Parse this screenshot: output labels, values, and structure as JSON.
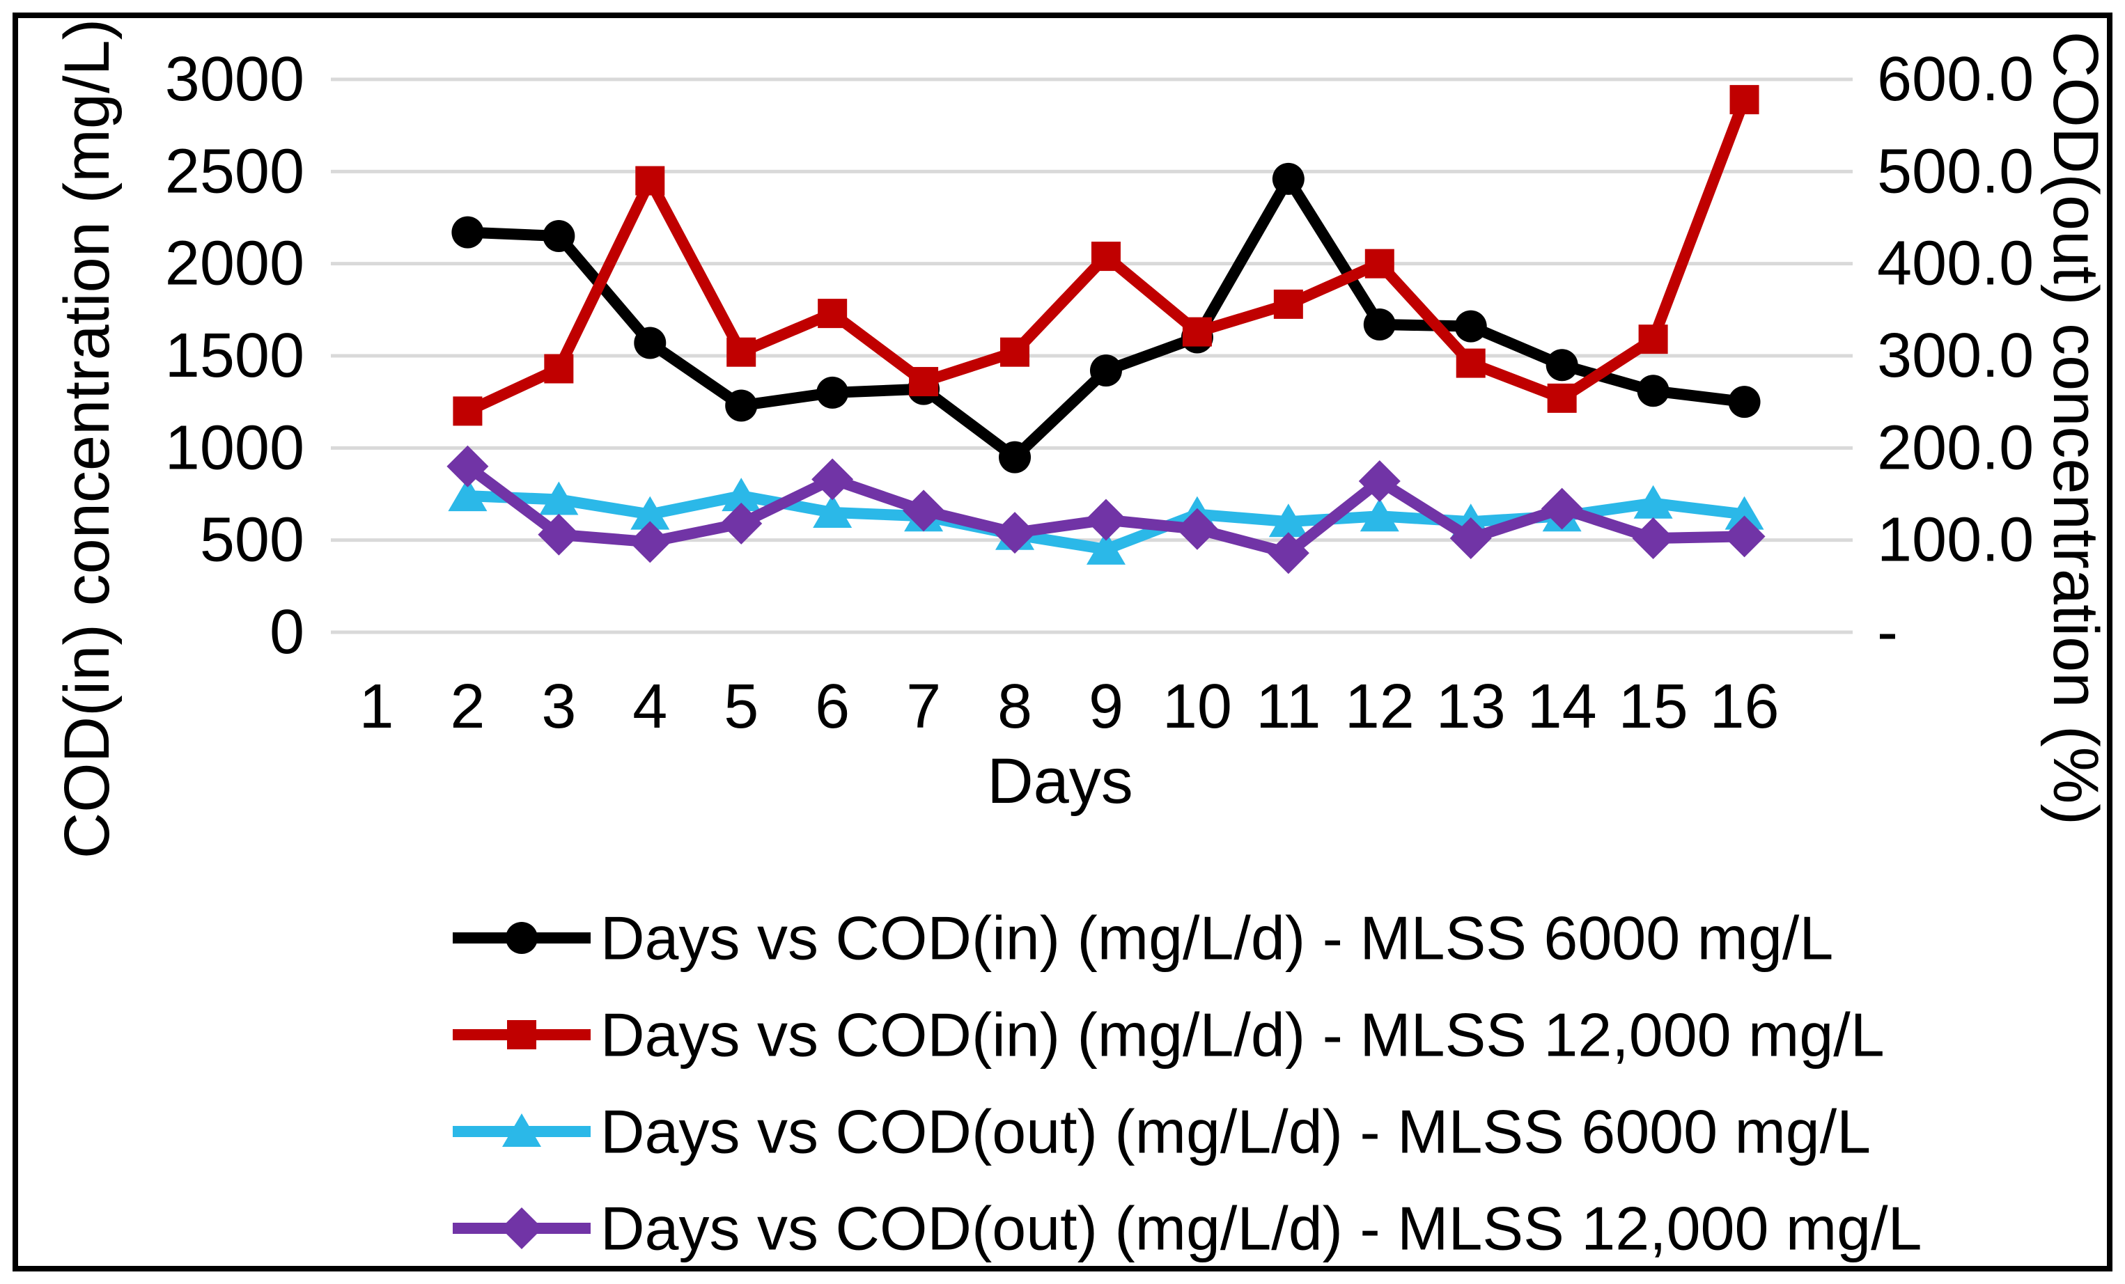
{
  "figure": {
    "background": "#ffffff",
    "border_color": "#000000",
    "gridline_color": "#D9D9D9"
  },
  "chart_data": {
    "type": "line",
    "title": "",
    "grid": true,
    "legend_position": "bottom",
    "x_axis": {
      "title": "Days",
      "tick_labels": [
        "1",
        "2",
        "3",
        "4",
        "5",
        "6",
        "7",
        "8",
        "9",
        "10",
        "11",
        "12",
        "13",
        "14",
        "15",
        "16"
      ]
    },
    "left_axis": {
      "title": "COD(in) concentration (mg/L)",
      "min": 0,
      "max": 3000,
      "tick_labels": [
        "3000",
        "2500",
        "2000",
        "1500",
        "1000",
        "500",
        "0"
      ],
      "tick_values": [
        3000,
        2500,
        2000,
        1500,
        1000,
        500,
        0
      ]
    },
    "right_axis": {
      "title": "COD(out) concentration (%)",
      "min": 0,
      "max": 600,
      "tick_labels": [
        "600.0",
        "500.0",
        "400.0",
        "300.0",
        "200.0",
        "100.0",
        "-"
      ],
      "tick_values": [
        600,
        500,
        400,
        300,
        200,
        100,
        0
      ]
    },
    "series": [
      {
        "name": "Days vs COD(in) (mg/L/d) - MLSS 6000 mg/L",
        "color": "#000000",
        "marker": "circle",
        "axis": "left",
        "x": [
          2,
          3,
          4,
          5,
          6,
          7,
          8,
          9,
          10,
          11,
          12,
          13,
          14,
          15,
          16
        ],
        "values": [
          2170,
          2150,
          1570,
          1230,
          1300,
          1320,
          950,
          1420,
          1600,
          2460,
          1670,
          1660,
          1450,
          1310,
          1250
        ]
      },
      {
        "name": "Days vs COD(in) (mg/L/d) - MLSS 12,000 mg/L",
        "color": "#C00000",
        "marker": "square",
        "axis": "left",
        "x": [
          2,
          3,
          4,
          5,
          6,
          7,
          8,
          9,
          10,
          11,
          12,
          13,
          14,
          15,
          16
        ],
        "values": [
          1200,
          1430,
          2450,
          1520,
          1730,
          1360,
          1520,
          2040,
          1630,
          1780,
          2000,
          1460,
          1270,
          1590,
          2890
        ]
      },
      {
        "name": "Days vs COD(out) (mg/L/d) - MLSS 6000 mg/L",
        "color": "#2BB8E8",
        "marker": "triangle",
        "axis": "right",
        "x": [
          2,
          3,
          4,
          5,
          6,
          7,
          8,
          9,
          10,
          11,
          12,
          13,
          14,
          15,
          16
        ],
        "values": [
          148,
          144,
          128,
          148,
          130,
          126,
          106,
          90,
          128,
          120,
          126,
          120,
          126,
          140,
          128
        ]
      },
      {
        "name": "Days vs COD(out) (mg/L/d) - MLSS 12,000 mg/L",
        "color": "#7134A6",
        "marker": "diamond",
        "axis": "right",
        "x": [
          2,
          3,
          4,
          5,
          6,
          7,
          8,
          9,
          10,
          11,
          12,
          13,
          14,
          15,
          16
        ],
        "values": [
          180,
          106,
          98,
          118,
          166,
          132,
          108,
          122,
          112,
          86,
          164,
          102,
          134,
          102,
          104
        ]
      }
    ]
  }
}
